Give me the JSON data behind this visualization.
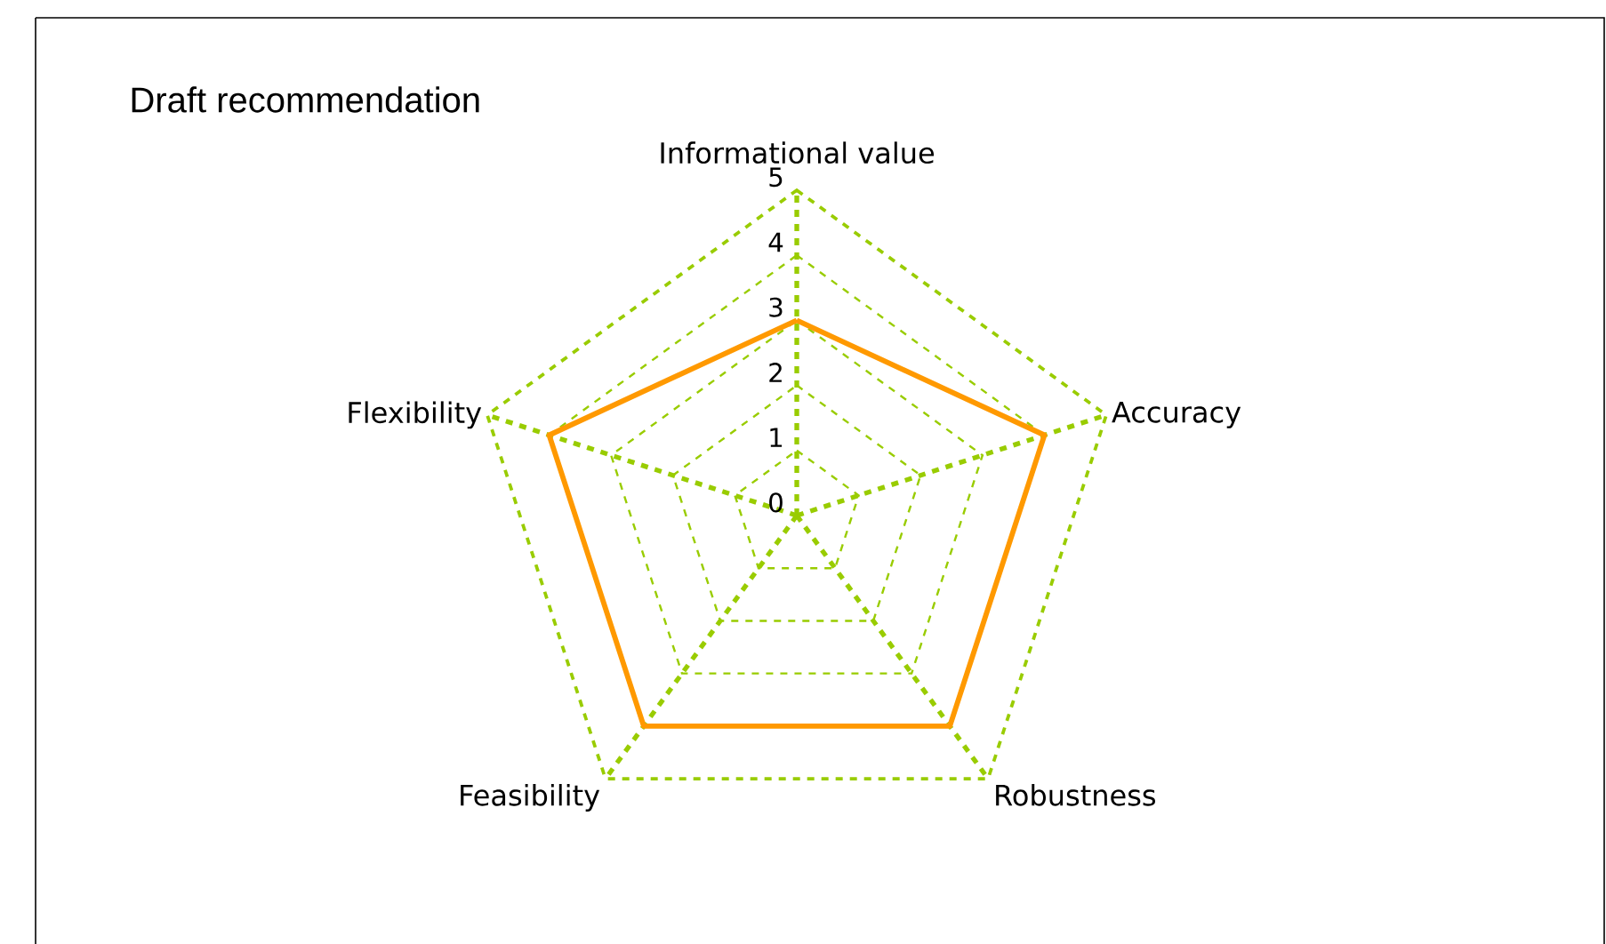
{
  "chart_data": {
    "type": "radar",
    "title": "Draft recommendation",
    "categories": [
      "Informational value",
      "Accuracy",
      "Robustness",
      "Feasibility",
      "Flexibility"
    ],
    "series": [
      {
        "color": "#ff9900",
        "values": [
          3,
          4,
          4,
          4,
          4
        ]
      }
    ],
    "ylim": [
      0,
      5
    ],
    "yticks": [
      0,
      1,
      2,
      3,
      4,
      5
    ],
    "grid": true
  }
}
